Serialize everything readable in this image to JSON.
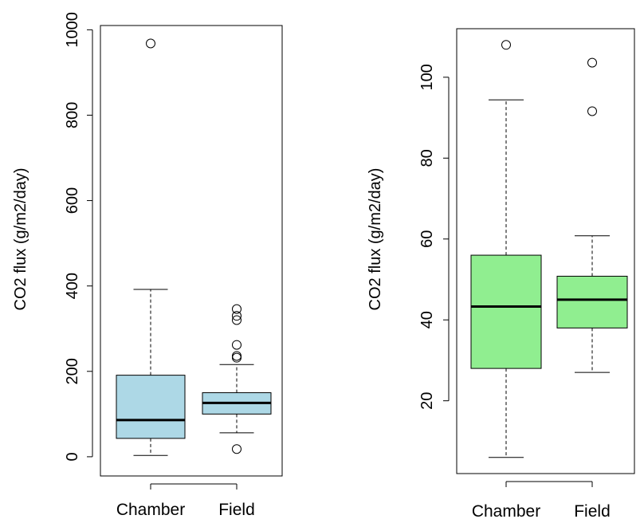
{
  "chart_data": [
    {
      "type": "boxplot",
      "title": "",
      "xlabel": "",
      "ylabel": "CO2 flux (g/m2/day)",
      "ylim": [
        -45,
        1010
      ],
      "yticks": [
        0,
        200,
        400,
        600,
        800,
        1000
      ],
      "categories": [
        "Chamber",
        "Field"
      ],
      "fill_color": "#add8e6",
      "boxes": [
        {
          "name": "Chamber",
          "whisker_low": 3,
          "q1": 43,
          "median": 86,
          "q3": 191,
          "whisker_high": 392,
          "outliers": [
            968
          ]
        },
        {
          "name": "Field",
          "whisker_low": 56,
          "q1": 100,
          "median": 126,
          "q3": 150,
          "whisker_high": 216,
          "outliers": [
            18,
            232,
            236,
            262,
            320,
            330,
            346
          ]
        }
      ]
    },
    {
      "type": "boxplot",
      "title": "",
      "xlabel": "",
      "ylabel": "CO2 flux (g/m2/day)",
      "ylim": [
        2,
        112
      ],
      "yticks": [
        20,
        40,
        60,
        80,
        100
      ],
      "categories": [
        "Chamber",
        "Field"
      ],
      "fill_color": "#90ee90",
      "boxes": [
        {
          "name": "Chamber",
          "whisker_low": 6,
          "q1": 28,
          "median": 43.3,
          "q3": 56,
          "whisker_high": 94.4,
          "outliers": [
            108
          ]
        },
        {
          "name": "Field",
          "whisker_low": 27,
          "q1": 38,
          "median": 45,
          "q3": 50.8,
          "whisker_high": 60.8,
          "outliers": [
            91.6,
            103.6
          ]
        }
      ]
    }
  ]
}
